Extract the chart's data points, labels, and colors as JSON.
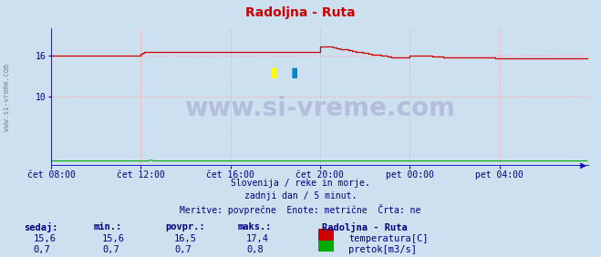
{
  "title": "Radoljna - Ruta",
  "background_color": "#cce0f0",
  "plot_bg_color": "#cce0f0",
  "x_min": 0,
  "x_max": 288,
  "y_min": 0,
  "y_max": 20,
  "ytick_positions": [
    10,
    16
  ],
  "ytick_labels": [
    "10",
    "16"
  ],
  "xtick_positions": [
    0,
    48,
    96,
    144,
    192,
    240
  ],
  "xtick_labels": [
    "čet 08:00",
    "čet 12:00",
    "čet 16:00",
    "čet 20:00",
    "pet 00:00",
    "pet 04:00"
  ],
  "grid_color": "#ffaaaa",
  "grid_vcolor": "#ffaaaa",
  "axis_color": "#0000bb",
  "watermark": "www.si-vreme.com",
  "watermark_color": "#b0b8d8",
  "logo_yellow": "#ffff00",
  "logo_blue": "#00aaff",
  "logo_dark_blue": "#004488",
  "subtitle1": "Slovenija / reke in morje.",
  "subtitle2": "zadnji dan / 5 minut.",
  "subtitle3": "Meritve: povprečne  Enote: metrične  Črta: ne",
  "legend_title": "Radoljna - Ruta",
  "legend_items": [
    {
      "label": "temperatura[C]",
      "color": "#cc0000"
    },
    {
      "label": "pretok[m3/s]",
      "color": "#00aa00"
    }
  ],
  "stats_headers": [
    "sedaj:",
    "min.:",
    "povpr.:",
    "maks.:"
  ],
  "stats_temp": [
    "15,6",
    "15,6",
    "16,5",
    "17,4"
  ],
  "stats_flow": [
    "0,7",
    "0,7",
    "0,7",
    "0,8"
  ],
  "temp_data": [
    16.0,
    16.0,
    16.0,
    16.0,
    16.0,
    16.0,
    16.0,
    16.0,
    16.0,
    16.0,
    16.0,
    16.0,
    16.0,
    16.0,
    16.0,
    16.0,
    16.0,
    16.0,
    16.0,
    16.0,
    16.0,
    16.0,
    16.0,
    16.0,
    16.0,
    16.0,
    16.0,
    16.0,
    16.0,
    16.0,
    16.0,
    16.0,
    16.0,
    16.0,
    16.0,
    16.0,
    16.0,
    16.0,
    16.0,
    16.0,
    16.0,
    16.0,
    16.0,
    16.0,
    16.0,
    16.0,
    16.0,
    16.0,
    16.3,
    16.4,
    16.5,
    16.5,
    16.5,
    16.5,
    16.5,
    16.5,
    16.5,
    16.5,
    16.5,
    16.5,
    16.5,
    16.5,
    16.5,
    16.5,
    16.5,
    16.5,
    16.5,
    16.5,
    16.5,
    16.5,
    16.5,
    16.5,
    16.5,
    16.5,
    16.5,
    16.5,
    16.5,
    16.5,
    16.5,
    16.5,
    16.5,
    16.5,
    16.5,
    16.5,
    16.5,
    16.5,
    16.5,
    16.5,
    16.5,
    16.5,
    16.5,
    16.5,
    16.5,
    16.5,
    16.5,
    16.5,
    16.5,
    16.5,
    16.5,
    16.5,
    16.5,
    16.5,
    16.5,
    16.5,
    16.5,
    16.5,
    16.5,
    16.5,
    16.5,
    16.5,
    16.5,
    16.5,
    16.5,
    16.5,
    16.5,
    16.5,
    16.5,
    16.5,
    16.5,
    16.5,
    16.5,
    16.5,
    16.5,
    16.5,
    16.5,
    16.5,
    16.5,
    16.5,
    16.5,
    16.5,
    16.5,
    16.5,
    16.5,
    16.5,
    16.5,
    16.5,
    16.5,
    16.5,
    16.5,
    16.5,
    16.5,
    16.5,
    16.5,
    16.5,
    17.4,
    17.4,
    17.4,
    17.4,
    17.4,
    17.4,
    17.3,
    17.2,
    17.2,
    17.1,
    17.1,
    17.0,
    17.0,
    16.9,
    16.9,
    16.8,
    16.8,
    16.7,
    16.7,
    16.6,
    16.6,
    16.5,
    16.5,
    16.4,
    16.4,
    16.4,
    16.3,
    16.3,
    16.2,
    16.2,
    16.2,
    16.1,
    16.1,
    16.0,
    16.0,
    16.0,
    15.9,
    15.9,
    15.8,
    15.8,
    15.8,
    15.8,
    15.8,
    15.8,
    15.8,
    15.7,
    15.7,
    15.7,
    16.0,
    16.0,
    16.0,
    16.0,
    16.0,
    16.0,
    16.0,
    16.0,
    16.0,
    16.0,
    16.0,
    16.0,
    15.9,
    15.9,
    15.9,
    15.9,
    15.9,
    15.9,
    15.8,
    15.7,
    15.7,
    15.7,
    15.7,
    15.7,
    15.7,
    15.7,
    15.7,
    15.7,
    15.7,
    15.7,
    15.7,
    15.7,
    15.7,
    15.7,
    15.7,
    15.7,
    15.7,
    15.7,
    15.7,
    15.7,
    15.7,
    15.7,
    15.7,
    15.7,
    15.7,
    15.7,
    15.6,
    15.6
  ],
  "temp_color": "#cc0000",
  "flow_color": "#00aa00",
  "title_color": "#cc0000",
  "text_color": "#000080",
  "header_color": "#000080"
}
